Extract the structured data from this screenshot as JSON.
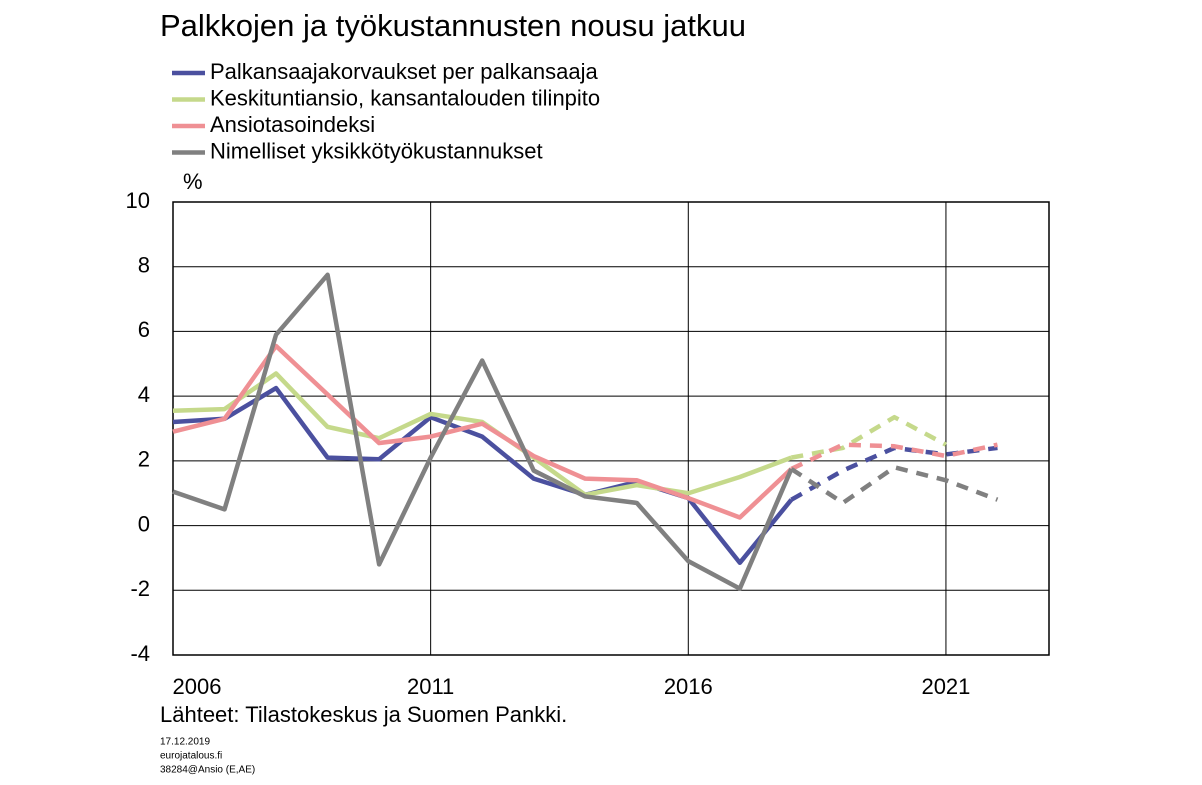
{
  "chart_data": {
    "type": "line",
    "title": "Palkkojen ja työkustannusten nousu jatkuu",
    "y_unit": "%",
    "source": "Lähteet: Tilastokeskus ja Suomen Pankki.",
    "notes": [
      "17.12.2019",
      "eurojatalous.fi",
      "38284@Ansio (E,AE)"
    ],
    "x": [
      2006,
      2007,
      2008,
      2009,
      2010,
      2011,
      2012,
      2013,
      2014,
      2015,
      2016,
      2017,
      2018,
      2019,
      2020,
      2021,
      2022
    ],
    "forecast_start": 2018,
    "series": [
      {
        "name": "Palkansaajakorvaukset per palkansaaja",
        "color": "#4b509f",
        "values": [
          3.2,
          3.3,
          4.25,
          2.1,
          2.05,
          3.35,
          2.75,
          1.45,
          0.95,
          1.35,
          0.85,
          -1.15,
          0.8,
          1.7,
          2.4,
          2.2,
          2.4
        ]
      },
      {
        "name": "Keskituntiansio, kansantalouden tilinpito",
        "color": "#c5d98b",
        "values": [
          3.55,
          3.6,
          4.7,
          3.05,
          2.7,
          3.45,
          3.2,
          2.1,
          0.95,
          1.25,
          1.0,
          1.5,
          2.1,
          2.4,
          3.35,
          2.5,
          null
        ]
      },
      {
        "name": "Ansiotasoindeksi",
        "color": "#ef9094",
        "values": [
          2.9,
          3.3,
          5.55,
          4.05,
          2.55,
          2.75,
          3.15,
          2.15,
          1.45,
          1.4,
          0.85,
          0.25,
          1.75,
          2.5,
          2.45,
          2.15,
          2.5
        ]
      },
      {
        "name": "Nimelliset yksikkötyökustannukset",
        "color": "#808080",
        "values": [
          1.05,
          0.5,
          5.9,
          7.75,
          -1.2,
          2.1,
          5.1,
          1.7,
          0.9,
          0.7,
          -1.1,
          -1.95,
          1.75,
          0.7,
          1.8,
          1.4,
          0.8
        ]
      }
    ],
    "xlim": [
      2006,
      2023
    ],
    "xticks": [
      2006,
      2011,
      2016,
      2021
    ],
    "ylim": [
      -4,
      10
    ],
    "yticks": [
      -4,
      -2,
      0,
      2,
      4,
      6,
      8,
      10
    ],
    "grid": true
  }
}
